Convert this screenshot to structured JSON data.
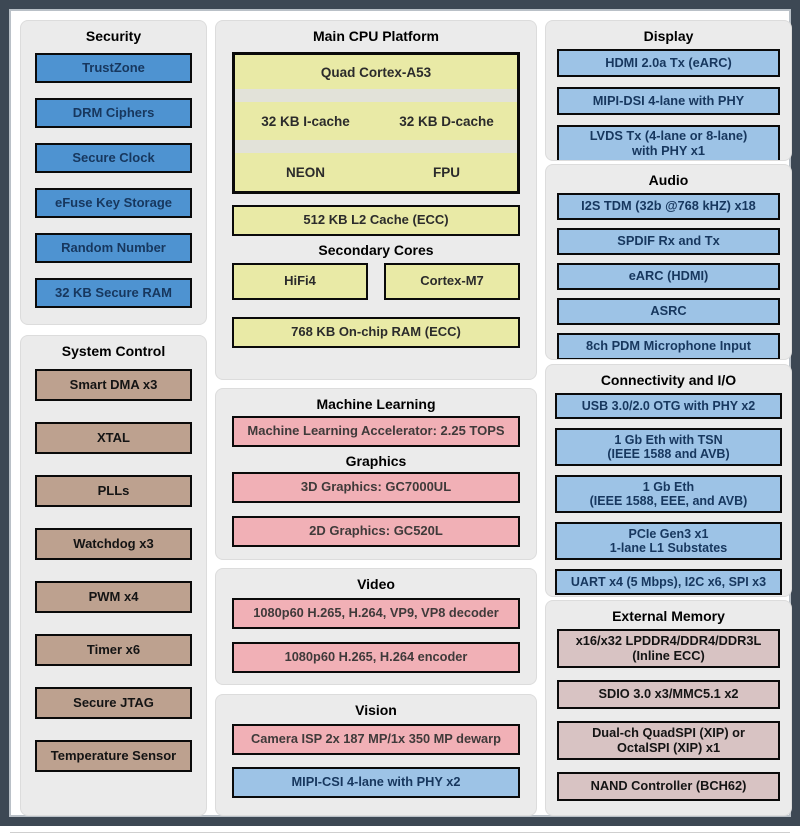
{
  "colors": {
    "frame": "#3d4854",
    "panel_bg": "#ebebeb",
    "security_blue": "#4e93d1",
    "peripheral_lightblue": "#9dc3e6",
    "cpu_yellow": "#e9eaa6",
    "media_pink": "#f1b0b6",
    "system_tan": "#bda18f",
    "memory_mauve": "#d8c3c3",
    "box_border": "#0a0a0a",
    "navy_text": "#17375e"
  },
  "panels": {
    "security": {
      "title": "Security",
      "items": [
        "TrustZone",
        "DRM Ciphers",
        "Secure Clock",
        "eFuse Key Storage",
        "Random Number",
        "32 KB Secure RAM"
      ]
    },
    "system_control": {
      "title": "System Control",
      "items": [
        "Smart DMA x3",
        "XTAL",
        "PLLs",
        "Watchdog x3",
        "PWM x4",
        "Timer x6",
        "Secure JTAG",
        "Temperature Sensor"
      ]
    },
    "main_cpu": {
      "title": "Main CPU Platform",
      "cpu": {
        "label": "Quad Cortex-A53",
        "cells": [
          "32 KB I-cache",
          "32 KB D-cache",
          "NEON",
          "FPU"
        ]
      },
      "l2": "512 KB L2 Cache (ECC)",
      "secondary_title": "Secondary Cores",
      "secondary": [
        "HiFi4",
        "Cortex-M7"
      ],
      "ram": "768 KB On-chip RAM (ECC)"
    },
    "machine_learning": {
      "title": "Machine Learning",
      "items": [
        "Machine Learning Accelerator: 2.25 TOPS"
      ],
      "graphics_title": "Graphics",
      "graphics_items": [
        "3D Graphics: GC7000UL",
        "2D Graphics: GC520L"
      ]
    },
    "video": {
      "title": "Video",
      "items": [
        "1080p60 H.265, H.264, VP9, VP8 decoder",
        "1080p60 H.265, H.264 encoder"
      ]
    },
    "vision": {
      "title": "Vision",
      "items": [
        {
          "label": "Camera ISP 2x 187 MP/1x 350 MP dewarp",
          "style": "pink"
        },
        {
          "label": "MIPI-CSI 4-lane with PHY x2",
          "style": "lightblue"
        }
      ]
    },
    "display": {
      "title": "Display",
      "items": [
        "HDMI 2.0a Tx (eARC)",
        "MIPI-DSI 4-lane with PHY",
        "LVDS Tx (4-lane or 8-lane)\nwith PHY x1"
      ]
    },
    "audio": {
      "title": "Audio",
      "items": [
        "I2S TDM (32b @768 kHZ) x18",
        "SPDIF Rx and Tx",
        "eARC (HDMI)",
        "ASRC",
        "8ch PDM Microphone Input"
      ]
    },
    "connectivity": {
      "title": "Connectivity and I/O",
      "items": [
        "USB 3.0/2.0 OTG with PHY x2",
        "1 Gb Eth with TSN\n(IEEE 1588 and AVB)",
        "1 Gb Eth\n(IEEE 1588, EEE, and AVB)",
        "PCIe Gen3 x1\n1-lane L1 Substates",
        "UART x4 (5 Mbps), I2C x6, SPI x3"
      ]
    },
    "external_memory": {
      "title": "External Memory",
      "items": [
        "x16/x32 LPDDR4/DDR4/DDR3L\n(Inline ECC)",
        "SDIO 3.0 x3/MMC5.1 x2",
        "Dual-ch QuadSPI (XIP) or\nOctalSPI (XIP) x1",
        "NAND Controller (BCH62)"
      ]
    }
  }
}
